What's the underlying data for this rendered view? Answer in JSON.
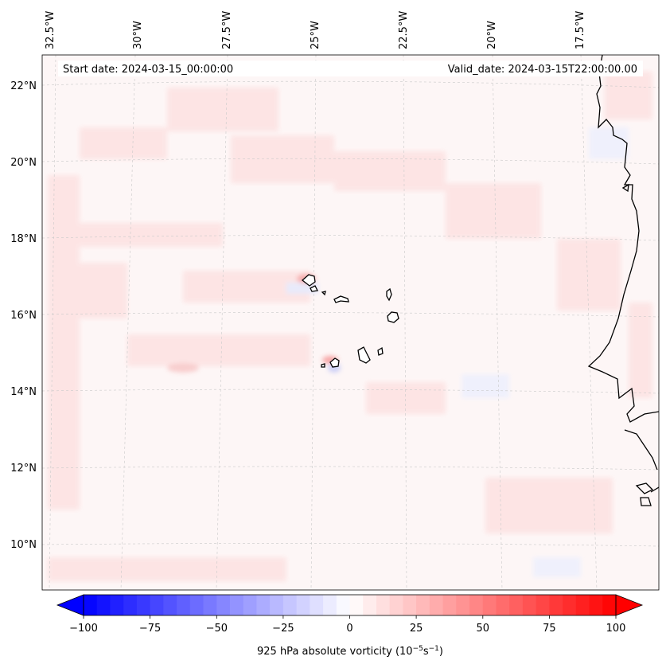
{
  "map": {
    "start_label": "Start date: 2024-03-15_00:00:00",
    "valid_label": "Valid_date: 2024-03-15T22:00:00.00",
    "lon_labels": [
      "32.5°W",
      "30°W",
      "27.5°W",
      "25°W",
      "22.5°W",
      "20°W",
      "17.5°W"
    ],
    "lat_labels": [
      "22°N",
      "20°N",
      "18°N",
      "16°N",
      "14°N",
      "12°N",
      "10°N"
    ],
    "gridlines": "dashed"
  },
  "colorbar": {
    "ticks": [
      "−100",
      "−75",
      "−50",
      "−25",
      "0",
      "25",
      "50",
      "75",
      "100"
    ],
    "label_main": "925 hPa absolute vorticity (10",
    "label_exp1": "−5",
    "label_mid": "s",
    "label_exp2": "−1",
    "label_end": ")",
    "min": -100,
    "max": 100,
    "colormap": "bwr",
    "extend": "both"
  },
  "colors": {
    "low": "#0000ff",
    "mid": "#ffffff",
    "high": "#ff0000",
    "background_field": "#fdf6f6",
    "coast": "#000000"
  }
}
